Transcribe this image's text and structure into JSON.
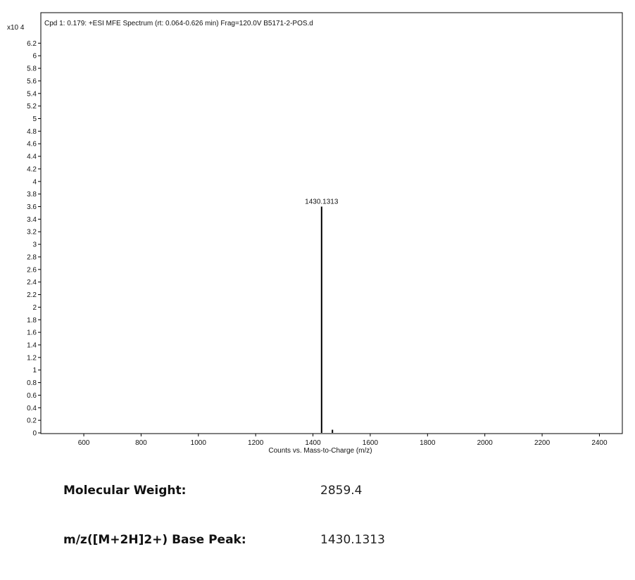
{
  "chart_data": {
    "type": "mass-spectrum",
    "title": "Cpd 1: 0.179: +ESI MFE Spectrum (rt: 0.064-0.626 min) Frag=120.0V B5171-2-POS.d",
    "xlabel": "Counts vs. Mass-to-Charge (m/z)",
    "y_multiplier": "x10 4",
    "xlim": [
      450,
      2480
    ],
    "ylim": [
      0,
      6.4
    ],
    "x_ticks": [
      600,
      800,
      1000,
      1200,
      1400,
      1600,
      1800,
      2000,
      2200,
      2400
    ],
    "y_ticks": [
      0,
      0.2,
      0.4,
      0.6,
      0.8,
      1,
      1.2,
      1.4,
      1.6,
      1.8,
      2,
      2.2,
      2.4,
      2.6,
      2.8,
      3,
      3.2,
      3.4,
      3.6,
      3.8,
      4,
      4.2,
      4.4,
      4.6,
      4.8,
      5,
      5.2,
      5.4,
      5.6,
      5.8,
      6,
      6.2
    ],
    "peaks": [
      {
        "mz": 1430.1313,
        "intensity": 3.6,
        "label": "1430.1313"
      },
      {
        "mz": 1468,
        "intensity": 0.05,
        "label": ""
      }
    ]
  },
  "info": {
    "mw_label": "Molecular Weight:",
    "mw_value": "2859.4",
    "peak_label": "m/z([M+2H]2+) Base Peak:",
    "peak_value": "1430.1313"
  }
}
